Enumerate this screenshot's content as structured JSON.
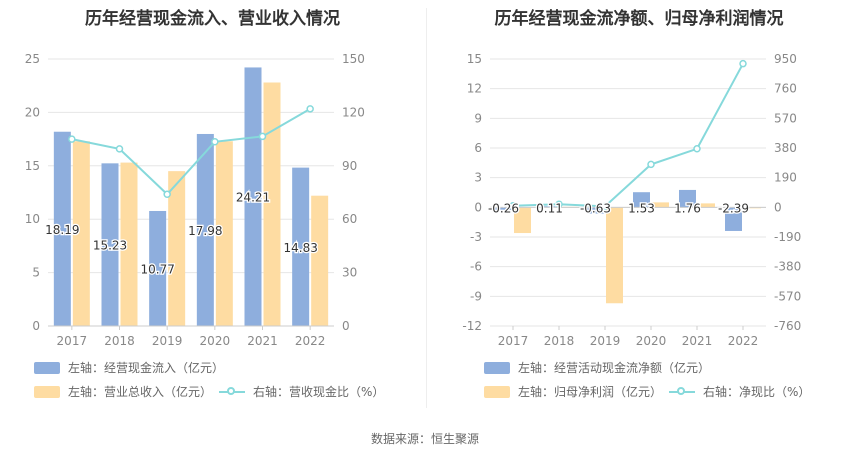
{
  "source_label": "数据来源：恒生聚源",
  "colors": {
    "blue": "#8eaedd",
    "orange": "#fedca2",
    "line": "#86d9db",
    "grid": "#e6e6e6",
    "axis_text": "#888888"
  },
  "chart_data": [
    {
      "type": "bar",
      "title": "历年经营现金流入、营业收入情况",
      "categories": [
        "2017",
        "2018",
        "2019",
        "2020",
        "2021",
        "2022"
      ],
      "ylim_left": [
        0,
        25
      ],
      "yticks_left": [
        0,
        5,
        10,
        15,
        20,
        25
      ],
      "ylim_right": [
        0,
        150
      ],
      "yticks_right": [
        0,
        30,
        60,
        90,
        120,
        150
      ],
      "grid": true,
      "legend_position": "bottom",
      "series": [
        {
          "name": "左轴：经营现金流入（亿元）",
          "kind": "bar",
          "axis": "left",
          "color": "#8eaedd",
          "values": [
            18.19,
            15.23,
            10.77,
            17.98,
            24.21,
            14.83
          ],
          "labels": [
            "18.19",
            "15.23",
            "10.77",
            "17.98",
            "24.21",
            "14.83"
          ]
        },
        {
          "name": "左轴：营业总收入（亿元）",
          "kind": "bar",
          "axis": "left",
          "color": "#fedca2",
          "values": [
            17.3,
            15.3,
            14.5,
            17.3,
            22.8,
            12.2
          ]
        },
        {
          "name": "右轴：营收现金比（%）",
          "kind": "line",
          "axis": "right",
          "color": "#86d9db",
          "values": [
            105,
            99.5,
            74,
            103.5,
            106.5,
            122
          ]
        }
      ]
    },
    {
      "type": "bar",
      "title": "历年经营现金流净额、归母净利润情况",
      "categories": [
        "2017",
        "2018",
        "2019",
        "2020",
        "2021",
        "2022"
      ],
      "ylim_left": [
        -12,
        15
      ],
      "yticks_left": [
        -12,
        -9,
        -6,
        -3,
        0,
        3,
        6,
        9,
        12,
        15
      ],
      "ylim_right": [
        -760,
        950
      ],
      "yticks_right": [
        -760,
        -570,
        -380,
        -190,
        0,
        190,
        380,
        570,
        760,
        950
      ],
      "grid": true,
      "legend_position": "bottom",
      "series": [
        {
          "name": "左轴：经营活动现金流净额（亿元）",
          "kind": "bar",
          "axis": "left",
          "color": "#8eaedd",
          "values": [
            -0.26,
            0.11,
            -0.63,
            1.53,
            1.76,
            -2.39
          ],
          "labels": [
            "-0.26",
            "0.11",
            "-0.63",
            "1.53",
            "1.76",
            "-2.39"
          ]
        },
        {
          "name": "左轴：归母净利润（亿元）",
          "kind": "bar",
          "axis": "left",
          "color": "#fedca2",
          "values": [
            -2.6,
            0.05,
            -9.7,
            0.5,
            0.4,
            -0.1
          ]
        },
        {
          "name": "右轴：净现比（%）",
          "kind": "line",
          "axis": "right",
          "color": "#86d9db",
          "values": [
            10,
            20,
            6,
            275,
            375,
            920
          ]
        }
      ]
    }
  ]
}
